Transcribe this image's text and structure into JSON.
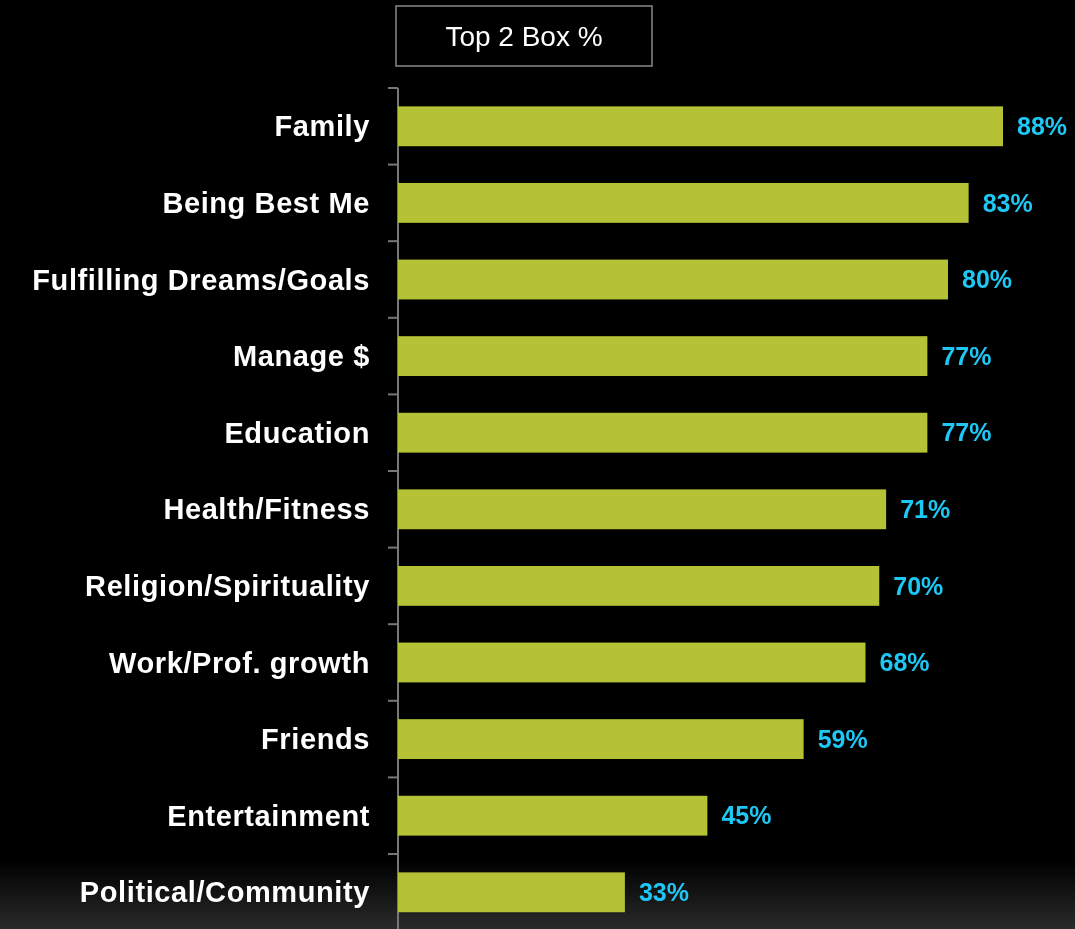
{
  "chart_data": {
    "type": "bar",
    "orientation": "horizontal",
    "title": "Top 2 Box %",
    "categories": [
      "Family",
      "Being Best Me",
      "Fulfilling Dreams/Goals",
      "Manage $",
      "Education",
      "Health/Fitness",
      "Religion/Spirituality",
      "Work/Prof. growth",
      "Friends",
      "Entertainment",
      "Political/Community"
    ],
    "values": [
      88,
      83,
      80,
      77,
      77,
      71,
      70,
      68,
      59,
      45,
      33
    ],
    "value_labels": [
      "88%",
      "83%",
      "80%",
      "77%",
      "77%",
      "71%",
      "70%",
      "68%",
      "59%",
      "45%",
      "33%"
    ],
    "color": "#b5c235"
  }
}
